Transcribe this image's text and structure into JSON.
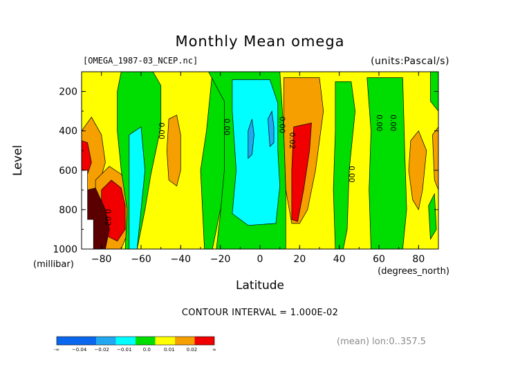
{
  "title": "Monthly Mean omega",
  "file_label": "[OMEGA_1987-03_NCEP.nc]",
  "units_label": "(units:Pascal/s)",
  "contour_interval": "CONTOUR INTERVAL = 1.000E-02",
  "footer_note": "(mean) lon:0..357.5",
  "colors": {
    "lt_m02": "#0b66ee",
    "m02_m01": "#21a8f0",
    "m01_0": "#00ffff",
    "b0_001": "#00dd00",
    "b001_002": "#ffff00",
    "b002_p": "#f5a000",
    "gt_002": "#f00000"
  },
  "chart_data": {
    "type": "contour",
    "title": "Monthly Mean omega",
    "xlabel": "Latitude",
    "xlabel_unit": "(degrees_north)",
    "ylabel": "Level",
    "ylabel_unit": "(millibar)",
    "xlim": [
      -90,
      90
    ],
    "ylim": [
      1000,
      100
    ],
    "x_ticks": [
      -80,
      -60,
      -40,
      -20,
      0,
      20,
      40,
      60,
      80
    ],
    "x_tick_labels": [
      "−80",
      "−60",
      "−40",
      "−20",
      "0",
      "20",
      "40",
      "60",
      "80"
    ],
    "y_ticks": [
      200,
      400,
      600,
      800,
      1000
    ],
    "y_tick_labels": [
      "200",
      "400",
      "600",
      "800",
      "1000"
    ],
    "contour_labels": [
      {
        "text": "0.00",
        "lat": -51,
        "lev": 400
      },
      {
        "text": "0.00",
        "lat": -18,
        "lev": 380
      },
      {
        "text": "0.00",
        "lat": 10,
        "lev": 370
      },
      {
        "text": "0.02",
        "lat": 15,
        "lev": 450
      },
      {
        "text": "0.00",
        "lat": 45,
        "lev": 620
      },
      {
        "text": "0.00",
        "lat": 59,
        "lev": 360
      },
      {
        "text": "0.00",
        "lat": 66,
        "lev": 360
      },
      {
        "text": "0.02",
        "lat": -78,
        "lev": 840
      }
    ],
    "colorbar": {
      "labels": [
        "-∞",
        "−0.04",
        "−0.02",
        "−0.01",
        "0.0",
        "0.01",
        "0.02",
        "∞"
      ],
      "segments": [
        "lt_m02",
        "lt_m02",
        "m02_m01",
        "m01_0",
        "b0_001",
        "b001_002",
        "b002_p",
        "gt_002"
      ]
    },
    "regions": [
      {
        "color": "b001_002",
        "pts": [
          [
            -90,
            100
          ],
          [
            90,
            100
          ],
          [
            90,
            1000
          ],
          [
            -90,
            1000
          ]
        ]
      },
      {
        "color": "b002_p",
        "pts": [
          [
            -90,
            400
          ],
          [
            -85,
            330
          ],
          [
            -80,
            420
          ],
          [
            -78,
            560
          ],
          [
            -82,
            700
          ],
          [
            -88,
            800
          ],
          [
            -90,
            800
          ]
        ]
      },
      {
        "color": "gt_002",
        "pts": [
          [
            -90,
            450
          ],
          [
            -87,
            460
          ],
          [
            -85,
            560
          ],
          [
            -88,
            650
          ],
          [
            -90,
            650
          ]
        ]
      },
      {
        "color": "b002_p",
        "pts": [
          [
            -83,
            650
          ],
          [
            -76,
            580
          ],
          [
            -70,
            620
          ],
          [
            -65,
            700
          ],
          [
            -66,
            900
          ],
          [
            -70,
            1000
          ],
          [
            -83,
            1000
          ]
        ]
      },
      {
        "color": "gt_002",
        "pts": [
          [
            -80,
            700
          ],
          [
            -75,
            650
          ],
          [
            -70,
            690
          ],
          [
            -68,
            780
          ],
          [
            -68,
            900
          ],
          [
            -72,
            960
          ],
          [
            -80,
            920
          ]
        ]
      },
      {
        "color": "b0_001",
        "pts": [
          [
            -70,
            100
          ],
          [
            -54,
            100
          ],
          [
            -50,
            170
          ],
          [
            -50,
            380
          ],
          [
            -55,
            620
          ],
          [
            -58,
            800
          ],
          [
            -62,
            1000
          ],
          [
            -68,
            1000
          ],
          [
            -67,
            800
          ],
          [
            -70,
            600
          ],
          [
            -72,
            400
          ],
          [
            -72,
            200
          ]
        ]
      },
      {
        "color": "m01_0",
        "pts": [
          [
            -66,
            420
          ],
          [
            -60,
            380
          ],
          [
            -58,
            600
          ],
          [
            -60,
            800
          ],
          [
            -62,
            1000
          ],
          [
            -66,
            1000
          ],
          [
            -66,
            700
          ]
        ]
      },
      {
        "color": "b002_p",
        "pts": [
          [
            -46,
            340
          ],
          [
            -42,
            320
          ],
          [
            -40,
            420
          ],
          [
            -40,
            600
          ],
          [
            -42,
            680
          ],
          [
            -46,
            650
          ],
          [
            -47,
            500
          ]
        ]
      },
      {
        "color": "b0_001",
        "pts": [
          [
            -24,
            100
          ],
          [
            -6,
            100
          ],
          [
            -4,
            200
          ],
          [
            -8,
            500
          ],
          [
            -10,
            700
          ],
          [
            -20,
            800
          ],
          [
            -24,
            1000
          ],
          [
            -28,
            1000
          ],
          [
            -30,
            600
          ],
          [
            -27,
            400
          ],
          [
            -25,
            200
          ]
        ]
      },
      {
        "color": "b0_001",
        "pts": [
          [
            -26,
            100
          ],
          [
            10,
            100
          ],
          [
            12,
            400
          ],
          [
            13,
            700
          ],
          [
            13,
            1000
          ],
          [
            -22,
            1000
          ],
          [
            -20,
            820
          ],
          [
            -18,
            600
          ],
          [
            -18,
            250
          ]
        ]
      },
      {
        "color": "m01_0",
        "pts": [
          [
            -14,
            140
          ],
          [
            5,
            140
          ],
          [
            9,
            260
          ],
          [
            9,
            500
          ],
          [
            10,
            680
          ],
          [
            8,
            870
          ],
          [
            -6,
            880
          ],
          [
            -14,
            820
          ],
          [
            -12,
            600
          ],
          [
            -14,
            300
          ]
        ]
      },
      {
        "color": "m02_m01",
        "pts": [
          [
            -6,
            400
          ],
          [
            -4,
            340
          ],
          [
            -3,
            420
          ],
          [
            -4,
            520
          ],
          [
            -6,
            540
          ]
        ]
      },
      {
        "color": "m02_m01",
        "pts": [
          [
            4,
            340
          ],
          [
            6,
            300
          ],
          [
            7,
            380
          ],
          [
            7,
            460
          ],
          [
            5,
            480
          ]
        ]
      },
      {
        "color": "b002_p",
        "pts": [
          [
            12,
            130
          ],
          [
            30,
            130
          ],
          [
            32,
            300
          ],
          [
            28,
            600
          ],
          [
            24,
            800
          ],
          [
            20,
            870
          ],
          [
            16,
            870
          ],
          [
            13,
            700
          ],
          [
            12,
            400
          ]
        ]
      },
      {
        "color": "gt_002",
        "pts": [
          [
            17,
            380
          ],
          [
            26,
            360
          ],
          [
            25,
            500
          ],
          [
            22,
            700
          ],
          [
            19,
            860
          ],
          [
            16,
            850
          ],
          [
            16,
            600
          ]
        ]
      },
      {
        "color": "b0_001",
        "pts": [
          [
            38,
            150
          ],
          [
            46,
            150
          ],
          [
            48,
            300
          ],
          [
            45,
            600
          ],
          [
            44,
            900
          ],
          [
            42,
            1000
          ],
          [
            38,
            1000
          ],
          [
            37,
            700
          ],
          [
            38,
            400
          ]
        ]
      },
      {
        "color": "b0_001",
        "pts": [
          [
            54,
            130
          ],
          [
            72,
            130
          ],
          [
            73,
            500
          ],
          [
            74,
            800
          ],
          [
            72,
            1000
          ],
          [
            56,
            1000
          ],
          [
            55,
            700
          ],
          [
            56,
            400
          ]
        ]
      },
      {
        "color": "b002_p",
        "pts": [
          [
            76,
            450
          ],
          [
            80,
            400
          ],
          [
            84,
            500
          ],
          [
            82,
            700
          ],
          [
            80,
            800
          ],
          [
            77,
            750
          ],
          [
            75,
            600
          ]
        ]
      },
      {
        "color": "b0_001",
        "pts": [
          [
            86,
            100
          ],
          [
            90,
            100
          ],
          [
            90,
            300
          ],
          [
            86,
            250
          ]
        ]
      },
      {
        "color": "b002_p",
        "pts": [
          [
            87,
            420
          ],
          [
            90,
            380
          ],
          [
            90,
            700
          ],
          [
            88,
            650
          ]
        ]
      },
      {
        "color": "b0_001",
        "pts": [
          [
            85,
            780
          ],
          [
            88,
            720
          ],
          [
            89,
            900
          ],
          [
            86,
            950
          ]
        ]
      }
    ],
    "blank_region_pts": [
      [
        -90,
        600
      ],
      [
        -87,
        600
      ],
      [
        -87,
        850
      ],
      [
        -84,
        850
      ],
      [
        -84,
        1000
      ],
      [
        -90,
        1000
      ]
    ],
    "dark_region_pts": [
      [
        -87,
        700
      ],
      [
        -83,
        690
      ],
      [
        -78,
        800
      ],
      [
        -76,
        900
      ],
      [
        -78,
        1000
      ],
      [
        -87,
        1000
      ]
    ]
  }
}
